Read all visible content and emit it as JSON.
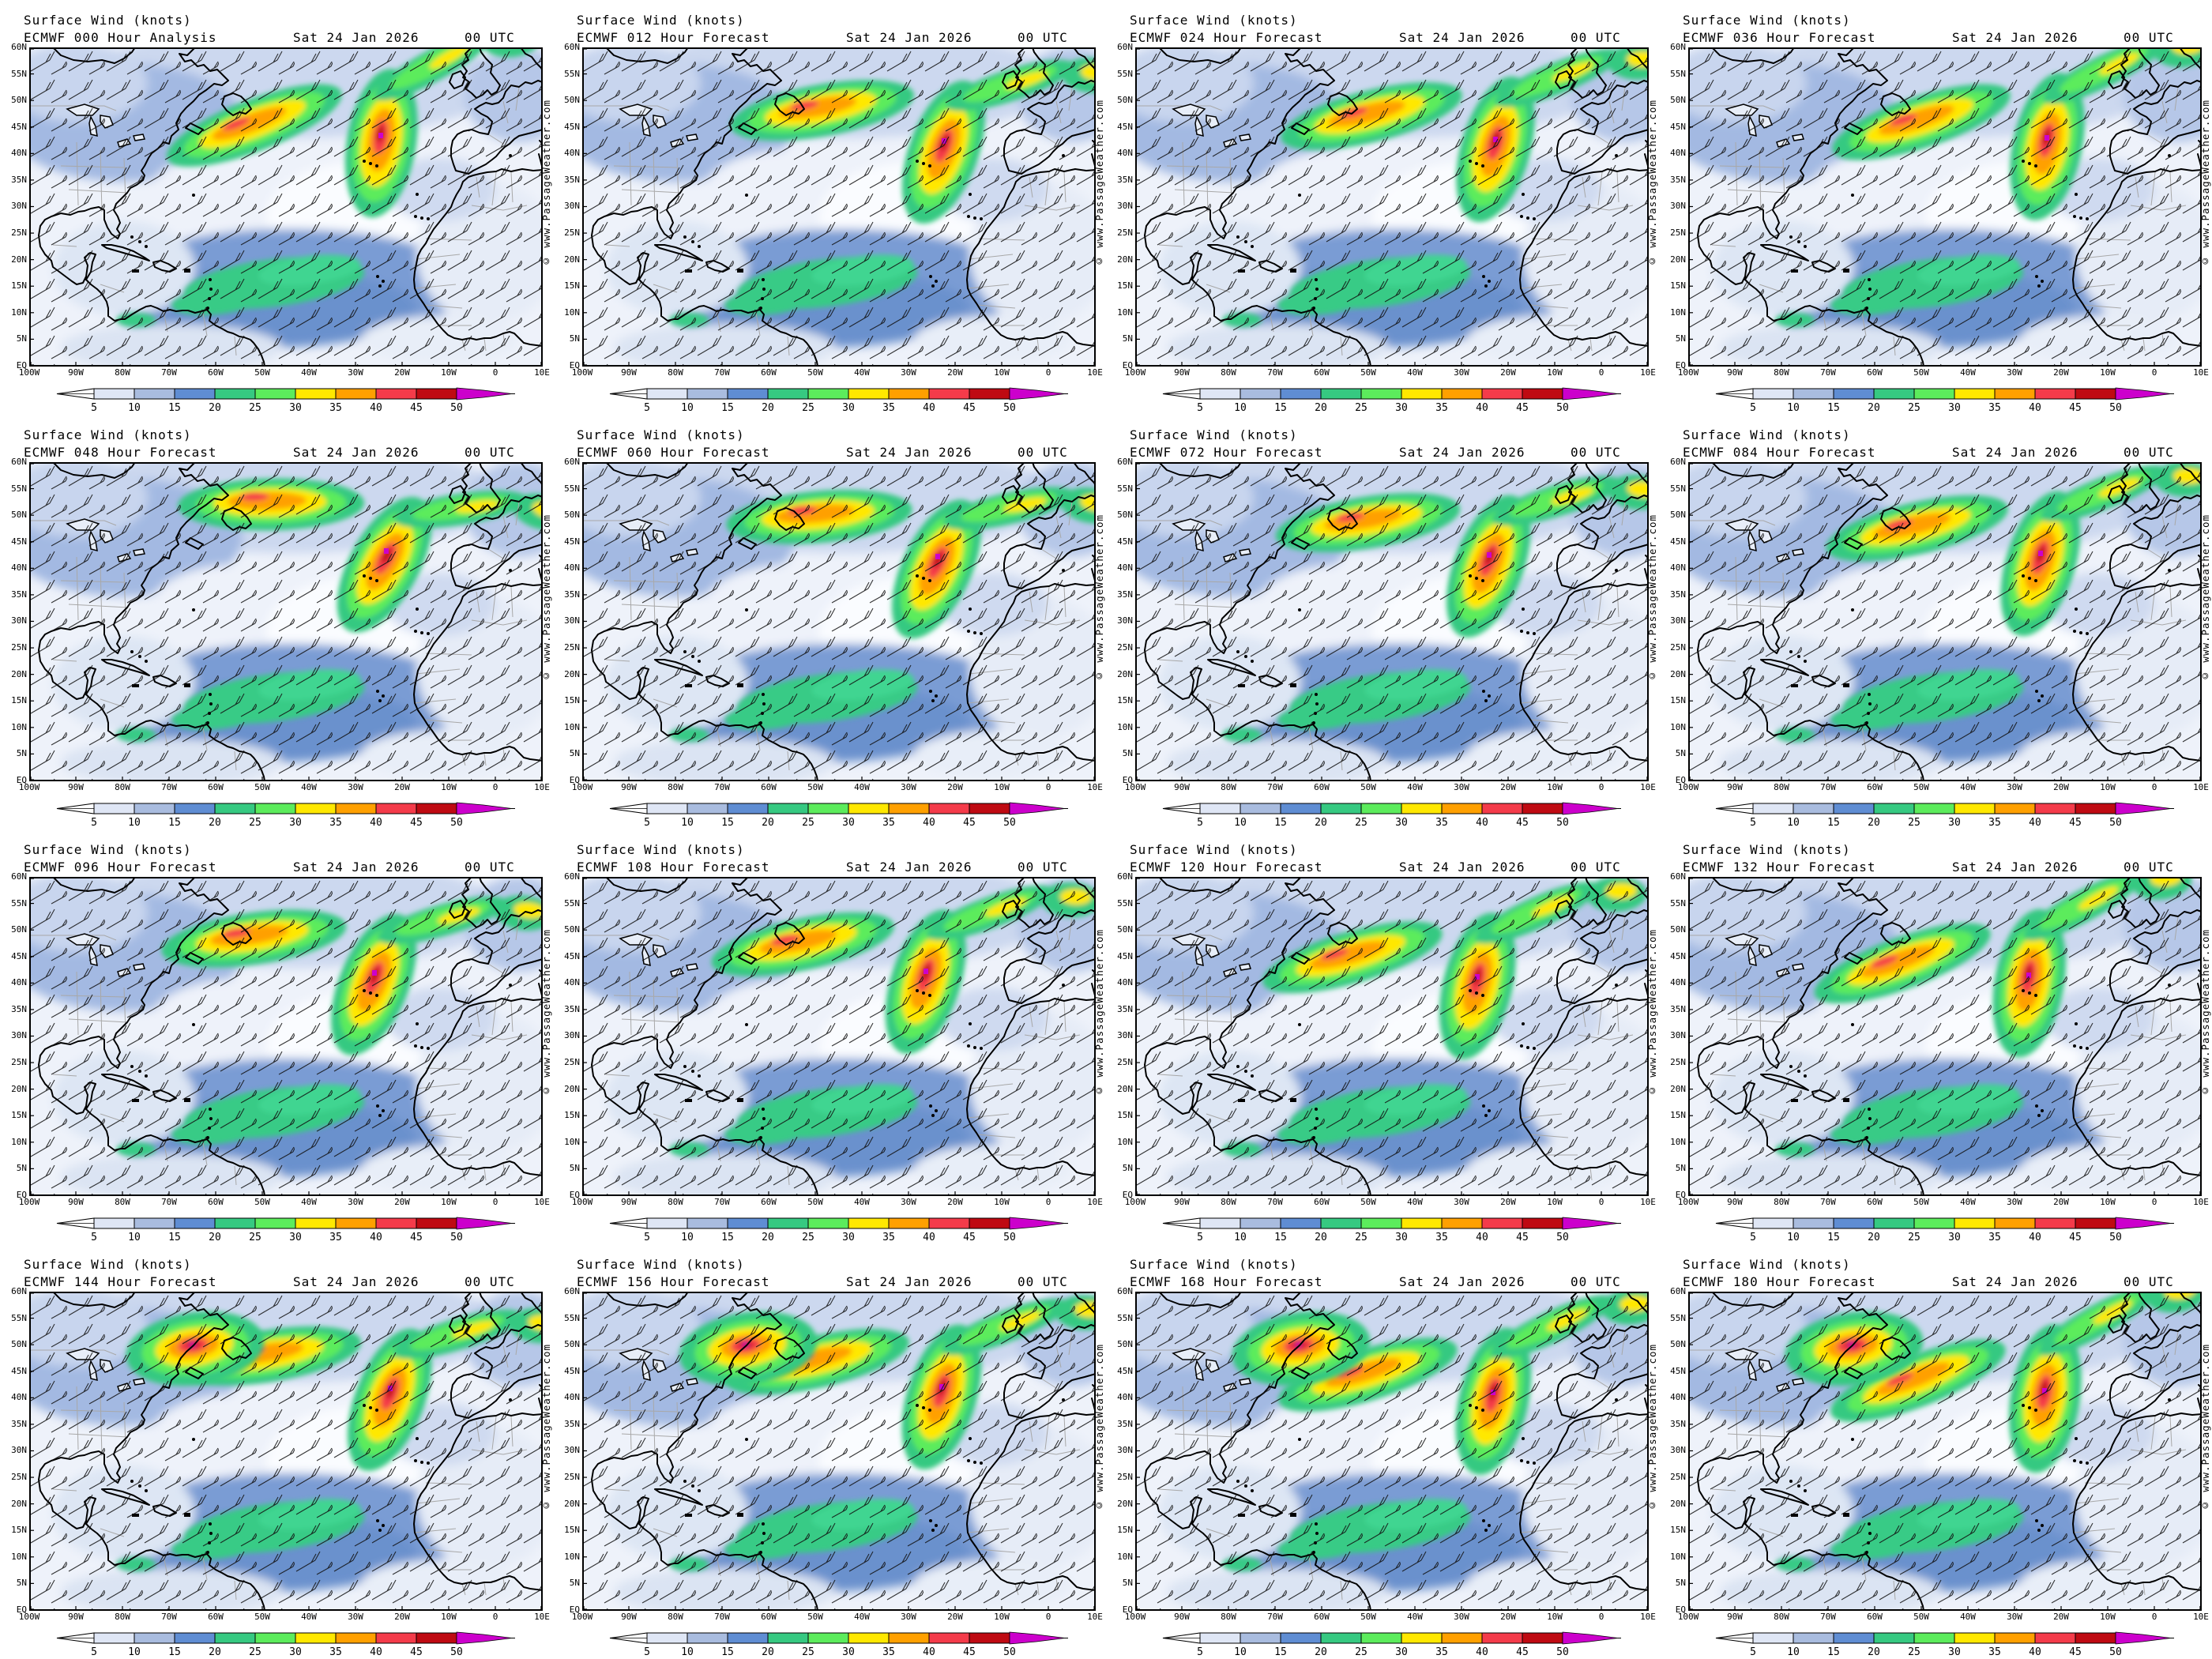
{
  "page": {
    "variable_title": "Surface Wind (knots)",
    "model": "ECMWF",
    "valid_date": "Sat 24 Jan 2026",
    "valid_time": "00 UTC",
    "copyright": "© www.PassageWeather.com"
  },
  "panels": [
    {
      "model_label": "ECMWF 000 Hour Analysis"
    },
    {
      "model_label": "ECMWF 012 Hour Forecast"
    },
    {
      "model_label": "ECMWF 024 Hour Forecast"
    },
    {
      "model_label": "ECMWF 036 Hour Forecast"
    },
    {
      "model_label": "ECMWF 048 Hour Forecast"
    },
    {
      "model_label": "ECMWF 060 Hour Forecast"
    },
    {
      "model_label": "ECMWF 072 Hour Forecast"
    },
    {
      "model_label": "ECMWF 084 Hour Forecast"
    },
    {
      "model_label": "ECMWF 096 Hour Forecast"
    },
    {
      "model_label": "ECMWF 108 Hour Forecast"
    },
    {
      "model_label": "ECMWF 120 Hour Forecast"
    },
    {
      "model_label": "ECMWF 132 Hour Forecast"
    },
    {
      "model_label": "ECMWF 144 Hour Forecast"
    },
    {
      "model_label": "ECMWF 156 Hour Forecast"
    },
    {
      "model_label": "ECMWF 168 Hour Forecast"
    },
    {
      "model_label": "ECMWF 180 Hour Forecast"
    }
  ],
  "map_axes": {
    "lat_labels": [
      "60N",
      "55N",
      "50N",
      "45N",
      "40N",
      "35N",
      "30N",
      "25N",
      "20N",
      "15N",
      "10N",
      "5N",
      "EQ"
    ],
    "lon_labels": [
      "100W",
      "90W",
      "80W",
      "70W",
      "60W",
      "50W",
      "40W",
      "30W",
      "20W",
      "10W",
      "0",
      "10E"
    ]
  },
  "colorbar": {
    "units": "knots",
    "tick_labels": [
      "5",
      "10",
      "15",
      "20",
      "25",
      "30",
      "35",
      "40",
      "45",
      "50"
    ],
    "segment_colors": [
      "#dfe6f5",
      "#a9bcdf",
      "#5f8dd3",
      "#36c981",
      "#5cec5c",
      "#ffe800",
      "#ffa000",
      "#f43b4a",
      "#bf0a12"
    ],
    "under_color": "#ffffff",
    "over_color": "#cc00cc"
  }
}
